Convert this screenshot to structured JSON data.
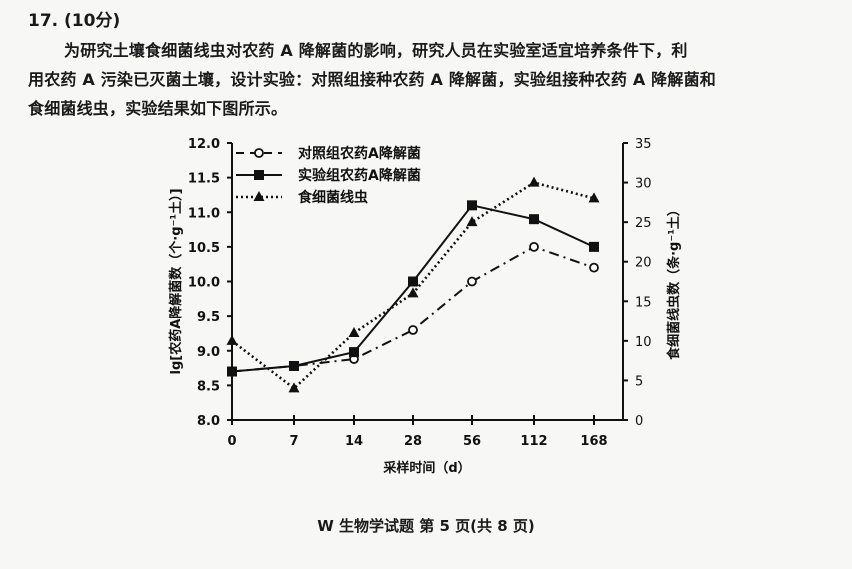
{
  "question": {
    "number_label": "17. (10分)",
    "paragraph_lines": [
      "为研究土壤食细菌线虫对农药 A 降解菌的影响，研究人员在实验室适宜培养条件下，利",
      "用农药 A 污染已灭菌土壤，设计实验：对照组接种农药 A 降解菌，实验组接种农药 A 降解菌和",
      "食细菌线虫，实验结果如下图所示。"
    ]
  },
  "chart_data": {
    "type": "line",
    "title": "",
    "xlabel": "采样时间（d）",
    "ylabel": "lg[农药A降解菌数（个·g⁻¹土）]",
    "ylabel_right": "食细菌线虫数（条·g⁻¹土）",
    "categories": [
      "0",
      "7",
      "14",
      "28",
      "56",
      "112",
      "168"
    ],
    "ylim": [
      8.0,
      12.0
    ],
    "ylim_right": [
      0,
      35
    ],
    "yticks": [
      "8.0",
      "8.5",
      "9.0",
      "9.5",
      "10.0",
      "10.5",
      "11.0",
      "11.5",
      "12.0"
    ],
    "yticks_right": [
      "0",
      "5",
      "10",
      "15",
      "20",
      "25",
      "30",
      "35"
    ],
    "grid": false,
    "legend_position": "top-left inside",
    "series": [
      {
        "name": "对照组农药A降解菌",
        "axis": "left",
        "style": "dash-dot",
        "marker": "open-circle",
        "values": [
          8.7,
          8.78,
          8.88,
          9.3,
          10.0,
          10.5,
          10.2
        ]
      },
      {
        "name": "实验组农药A降解菌",
        "axis": "left",
        "style": "solid",
        "marker": "filled-square",
        "values": [
          8.7,
          8.78,
          8.98,
          10.0,
          11.1,
          10.9,
          10.5
        ]
      },
      {
        "name": "食细菌线虫",
        "axis": "right",
        "style": "dotted",
        "marker": "filled-triangle",
        "values": [
          10,
          4,
          11,
          16,
          25,
          30,
          28
        ]
      }
    ]
  },
  "footer": {
    "text": "W 生物学试题 第 5 页(共 8 页)"
  }
}
